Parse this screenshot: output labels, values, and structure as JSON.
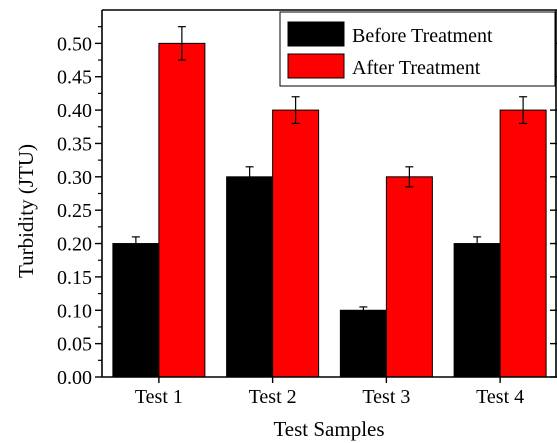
{
  "chart_data": {
    "type": "bar",
    "xlabel": "Test Samples",
    "ylabel": "Turbidity (JTU)",
    "categories": [
      "Test 1",
      "Test 2",
      "Test 3",
      "Test 4"
    ],
    "ylim": [
      0,
      0.55
    ],
    "yticks": [
      "0.00",
      "0.05",
      "0.10",
      "0.15",
      "0.20",
      "0.25",
      "0.30",
      "0.35",
      "0.40",
      "0.45",
      "0.50"
    ],
    "series": [
      {
        "name": "Before Treatment",
        "color": "#000000",
        "values": [
          0.2,
          0.3,
          0.1,
          0.2
        ],
        "errors": [
          0.01,
          0.015,
          0.005,
          0.01
        ]
      },
      {
        "name": "After Treatment",
        "color": "#ff0000",
        "values": [
          0.5,
          0.4,
          0.3,
          0.4
        ],
        "errors": [
          0.025,
          0.02,
          0.015,
          0.02
        ]
      }
    ],
    "legend_position": "top-right",
    "grid": false,
    "error_bars": true
  }
}
